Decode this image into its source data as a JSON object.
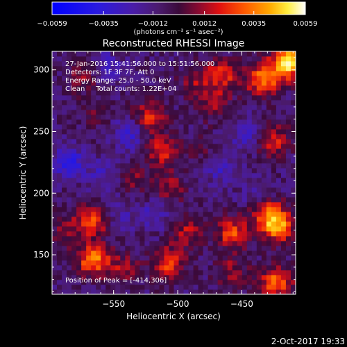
{
  "chart_data": {
    "type": "heatmap",
    "title": "Reconstructed RHESSI Image",
    "xlabel": "Heliocentric X (arcsec)",
    "ylabel": "Heliocentric Y (arcsec)",
    "xlim": [
      -598,
      -408
    ],
    "ylim": [
      118,
      315
    ],
    "x_ticks": [
      {
        "value": -550,
        "label": "−550"
      },
      {
        "value": -500,
        "label": "−500"
      },
      {
        "value": -450,
        "label": "−450"
      }
    ],
    "y_ticks": [
      {
        "value": 150,
        "label": "150"
      },
      {
        "value": 200,
        "label": "200"
      },
      {
        "value": 250,
        "label": "250"
      },
      {
        "value": 300,
        "label": "300"
      }
    ],
    "colorbar": {
      "min": -0.0059,
      "max": 0.0059,
      "unit_label": "(photons cm⁻² s⁻¹ asec⁻²)",
      "ticks": [
        {
          "value": -0.0059,
          "label": "−0.0059"
        },
        {
          "value": -0.0035,
          "label": "−0.0035"
        },
        {
          "value": -0.0012,
          "label": "−0.0012"
        },
        {
          "value": 0.0012,
          "label": "0.0012"
        },
        {
          "value": 0.0035,
          "label": "0.0035"
        },
        {
          "value": 0.0059,
          "label": "0.0059"
        }
      ]
    },
    "annotations": [
      "27-Jan-2016 15:41:56.000 to 15:51:56.000",
      "Detectors: 1F 3F 7F, Att 0",
      "Energy Range: 25.0 - 50.0 keV",
      "Clean     Total counts: 1.22E+04"
    ],
    "peak_label": "Position of Peak = [-414,306]",
    "peak": [
      -414,
      306
    ],
    "blobs": [
      {
        "x": -521,
        "y": 262,
        "value": 0.0031
      },
      {
        "x": -513,
        "y": 234,
        "value": 0.0027
      },
      {
        "x": -507,
        "y": 205,
        "value": 0.002
      },
      {
        "x": -535,
        "y": 212,
        "value": 0.0015
      },
      {
        "x": -573,
        "y": 296,
        "value": 0.0018
      },
      {
        "x": -566,
        "y": 265,
        "value": 0.001
      },
      {
        "x": -555,
        "y": 302,
        "value": -0.0016
      },
      {
        "x": -486,
        "y": 291,
        "value": 0.0017
      },
      {
        "x": -465,
        "y": 296,
        "value": 0.003
      },
      {
        "x": -472,
        "y": 273,
        "value": 0.0021
      },
      {
        "x": -433,
        "y": 292,
        "value": 0.0045
      },
      {
        "x": -426,
        "y": 243,
        "value": 0.0028
      },
      {
        "x": -414,
        "y": 306,
        "value": 0.0059
      },
      {
        "x": -447,
        "y": 248,
        "value": -0.0016
      },
      {
        "x": -467,
        "y": 222,
        "value": -0.0017
      },
      {
        "x": -438,
        "y": 198,
        "value": -0.0013
      },
      {
        "x": -457,
        "y": 168,
        "value": 0.0035
      },
      {
        "x": -431,
        "y": 185,
        "value": 0.003
      },
      {
        "x": -422,
        "y": 174,
        "value": 0.0049
      },
      {
        "x": -423,
        "y": 128,
        "value": 0.004
      },
      {
        "x": -458,
        "y": 137,
        "value": 0.0019
      },
      {
        "x": -507,
        "y": 143,
        "value": 0.0033
      },
      {
        "x": -493,
        "y": 168,
        "value": 0.0022
      },
      {
        "x": -567,
        "y": 178,
        "value": 0.0038
      },
      {
        "x": -588,
        "y": 168,
        "value": 0.0014
      },
      {
        "x": -566,
        "y": 146,
        "value": 0.0044
      },
      {
        "x": -543,
        "y": 138,
        "value": 0.0021
      },
      {
        "x": -585,
        "y": 225,
        "value": -0.0026
      },
      {
        "x": -558,
        "y": 215,
        "value": -0.0015
      },
      {
        "x": -537,
        "y": 248,
        "value": -0.0021
      },
      {
        "x": -518,
        "y": 183,
        "value": -0.0016
      },
      {
        "x": -480,
        "y": 236,
        "value": 0.001
      },
      {
        "x": -546,
        "y": 181,
        "value": -0.0012
      }
    ],
    "footer_date": "2-Oct-2017 19:33"
  }
}
